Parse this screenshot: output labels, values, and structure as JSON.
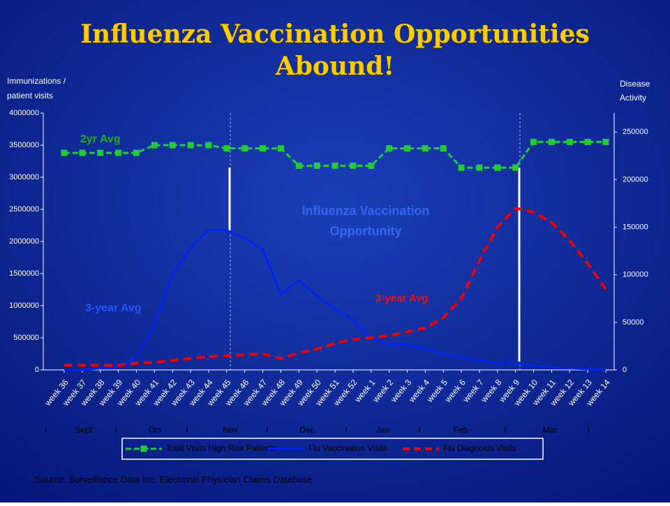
{
  "chart_data": {
    "type": "line",
    "title": "Influenza Vaccination Opportunities Abound!",
    "y_label": [
      "Immunizations /",
      "patient visits"
    ],
    "y2_label": [
      "Disease",
      "Activity"
    ],
    "categories": [
      "week 36",
      "week 37",
      "week 38",
      "week 39",
      "week 40",
      "week 41",
      "week 42",
      "week 43",
      "week 44",
      "week 45",
      "week 46",
      "week 47",
      "week 48",
      "week 49",
      "week 50",
      "week 51",
      "week 52",
      "week 1",
      "week 2",
      "week 3",
      "week 4",
      "week 5",
      "week 6",
      "week 7",
      "week 8",
      "week 9",
      "week 10",
      "week 11",
      "week 12",
      "week 13",
      "week 14"
    ],
    "month_labels": [
      "I",
      "Sept",
      "I",
      "Oct",
      "I",
      "Nov",
      "I",
      "Dec",
      "I",
      "Jan",
      "I",
      "Feb",
      "I",
      "Mar",
      "I"
    ],
    "ylim": [
      0,
      4000000
    ],
    "yticks": [
      0,
      500000,
      1000000,
      1500000,
      2000000,
      2500000,
      3000000,
      3500000,
      4000000
    ],
    "y2lim": [
      0,
      270000
    ],
    "y2ticks": [
      0,
      50000,
      100000,
      150000,
      200000,
      250000
    ],
    "series": [
      {
        "name": "Total Visits High Risk Patients",
        "color": "#22cc33",
        "marker": "square",
        "values": [
          3380000,
          3380000,
          3380000,
          3380000,
          3380000,
          3500000,
          3500000,
          3500000,
          3500000,
          3450000,
          3450000,
          3450000,
          3450000,
          3180000,
          3180000,
          3180000,
          3180000,
          3180000,
          3450000,
          3450000,
          3450000,
          3450000,
          3150000,
          3150000,
          3150000,
          3150000,
          3550000,
          3550000,
          3550000,
          3550000,
          3550000
        ]
      },
      {
        "name": "Flu Vaccination Visits",
        "color": "#0022ff",
        "values": [
          0,
          0,
          20000,
          50000,
          200000,
          700000,
          1500000,
          1900000,
          2180000,
          2180000,
          2050000,
          1880000,
          1180000,
          1400000,
          1150000,
          950000,
          780000,
          500000,
          400000,
          400000,
          330000,
          250000,
          200000,
          150000,
          110000,
          100000,
          70000,
          40000,
          20000,
          10000,
          0
        ]
      },
      {
        "name": "Flu Diagnosis Visits",
        "color": "#ee0000",
        "axis": "y2",
        "dashed": true,
        "values": [
          5000,
          5000,
          5000,
          5000,
          7000,
          8000,
          10000,
          12000,
          14000,
          15000,
          16000,
          17000,
          12000,
          18000,
          22000,
          28000,
          32000,
          34000,
          36000,
          40000,
          44000,
          55000,
          75000,
          115000,
          150000,
          170000,
          166000,
          155000,
          136000,
          112000,
          85000
        ]
      }
    ],
    "annotations": [
      {
        "text": "2yr Avg",
        "color": "#22aa22"
      },
      {
        "text": "3-year Avg",
        "color": "#2255ff"
      },
      {
        "text": "3-year Avg",
        "color": "#ee1111"
      },
      {
        "text": "Influenza Vaccination",
        "color": "#3366ee"
      },
      {
        "text": "Opportunity",
        "color": "#3366ee"
      }
    ],
    "source": "Source: Surveillance Data Inc. Electronic Physician Claims Database"
  }
}
